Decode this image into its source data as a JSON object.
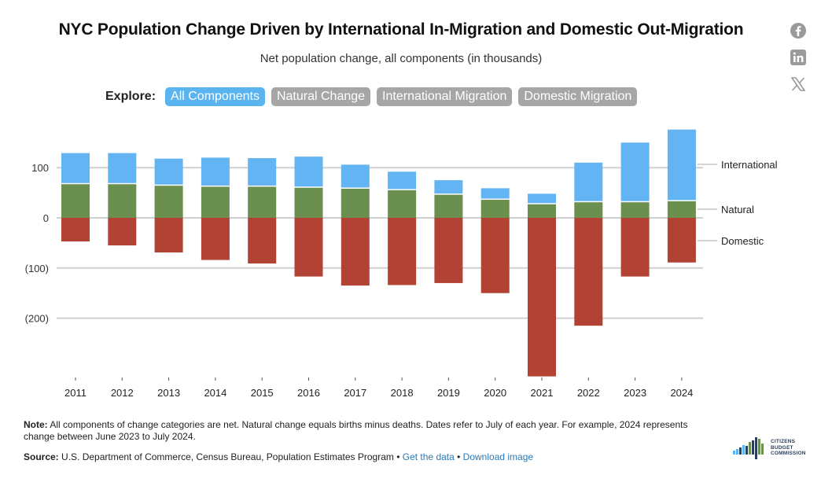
{
  "header": {
    "title": "NYC Population Change Driven by International In-Migration and Domestic Out-Migration",
    "subtitle": "Net population change, all components (in thousands)"
  },
  "social": [
    "facebook-icon",
    "linkedin-icon",
    "x-icon"
  ],
  "explore": {
    "label": "Explore:",
    "buttons": [
      "All Components",
      "Natural Change",
      "International Migration",
      "Domestic Migration"
    ],
    "active_index": 0
  },
  "colors": {
    "international": "#62b5f2",
    "natural": "#6b8f4e",
    "domestic": "#b14234",
    "active_button": "#5ab4f0",
    "inactive_button": "#a6a6a6",
    "link": "#2a7ab5"
  },
  "chart_data": {
    "type": "bar",
    "stacked": true,
    "title": "NYC Population Change Driven by International In-Migration and Domestic Out-Migration",
    "subtitle": "Net population change, all components (in thousands)",
    "categories": [
      "2011",
      "2012",
      "2013",
      "2014",
      "2015",
      "2016",
      "2017",
      "2018",
      "2019",
      "2020",
      "2021",
      "2022",
      "2023",
      "2024"
    ],
    "series": [
      {
        "name": "International",
        "values": [
          62,
          62,
          54,
          58,
          57,
          62,
          48,
          37,
          29,
          23,
          21,
          79,
          119,
          143
        ]
      },
      {
        "name": "Natural",
        "values": [
          67,
          67,
          64,
          62,
          62,
          60,
          58,
          55,
          46,
          36,
          27,
          31,
          31,
          33
        ]
      },
      {
        "name": "Domestic",
        "values": [
          -47,
          -55,
          -69,
          -84,
          -91,
          -117,
          -135,
          -134,
          -130,
          -150,
          -316,
          -215,
          -117,
          -89
        ]
      }
    ],
    "ylim": [
      -325,
      180
    ],
    "yticks": [
      100,
      0,
      -100,
      -200
    ],
    "ytick_labels": [
      "100",
      "0",
      "(100)",
      "(200)"
    ],
    "grid": true,
    "legend": "right (direct labels)"
  },
  "footer": {
    "note_label": "Note:",
    "note_text": " All components of change categories are net. Natural change equals births minus deaths. Dates refer to July of each year. For example, 2024 represents change between June 2023 to July 2024.",
    "source_label": "Source:",
    "source_text": " U.S. Department of Commerce, Census Bureau, Population Estimates Program",
    "sep": " • ",
    "link_data": "Get the data",
    "link_image": "Download image"
  },
  "logo": {
    "line1": "CITIZENS",
    "line2": "BUDGET",
    "line3": "COMMISSION"
  }
}
